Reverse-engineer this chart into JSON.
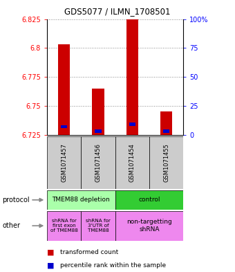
{
  "title": "GDS5077 / ILMN_1708501",
  "samples": [
    "GSM1071457",
    "GSM1071456",
    "GSM1071454",
    "GSM1071455"
  ],
  "bar_bottoms": [
    6.725,
    6.725,
    6.725,
    6.725
  ],
  "bar_tops": [
    6.803,
    6.765,
    6.828,
    6.745
  ],
  "blue_values": [
    6.732,
    6.728,
    6.734,
    6.728
  ],
  "ylim": [
    6.725,
    6.825
  ],
  "yticks_left": [
    6.825,
    6.8,
    6.775,
    6.75,
    6.725
  ],
  "yticks_right": [
    100,
    75,
    50,
    25,
    0
  ],
  "bar_color": "#cc0000",
  "blue_color": "#0000cc",
  "bar_width": 0.35,
  "protocol_color_left": "#aaffaa",
  "protocol_color_right": "#33cc33",
  "other_color": "#ee88ee",
  "sample_box_color": "#cccccc",
  "grid_color": "#888888"
}
